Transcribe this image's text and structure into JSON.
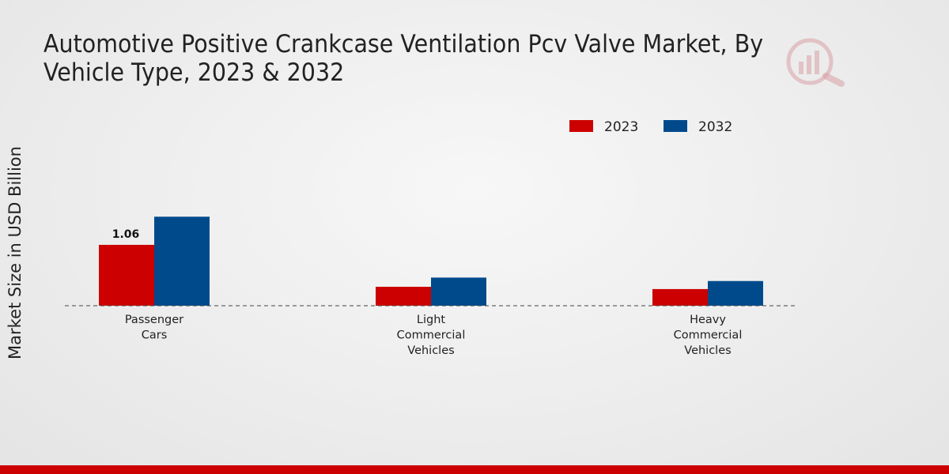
{
  "chart_data": {
    "type": "bar",
    "title": "Automotive Positive Crankcase Ventilation Pcv Valve Market, By Vehicle Type, 2023 & 2032",
    "xlabel": "",
    "ylabel": "Market Size in USD Billion",
    "categories": [
      [
        "Passenger",
        "Cars"
      ],
      [
        "Light",
        "Commercial",
        "Vehicles"
      ],
      [
        "Heavy",
        "Commercial",
        "Vehicles"
      ]
    ],
    "series": [
      {
        "name": "2023",
        "color": "#cc0000",
        "values": [
          1.06,
          0.33,
          0.29
        ]
      },
      {
        "name": "2032",
        "color": "#004a8c",
        "values": [
          1.55,
          0.49,
          0.43
        ]
      }
    ],
    "data_labels": [
      {
        "series": 0,
        "category": 0,
        "text": "1.06"
      }
    ],
    "ylim": [
      0,
      3.7
    ],
    "grid": false,
    "legend_position": "top-center"
  },
  "colors": {
    "accent_bar": "#cc0000",
    "watermark": "#d9a0a6"
  }
}
